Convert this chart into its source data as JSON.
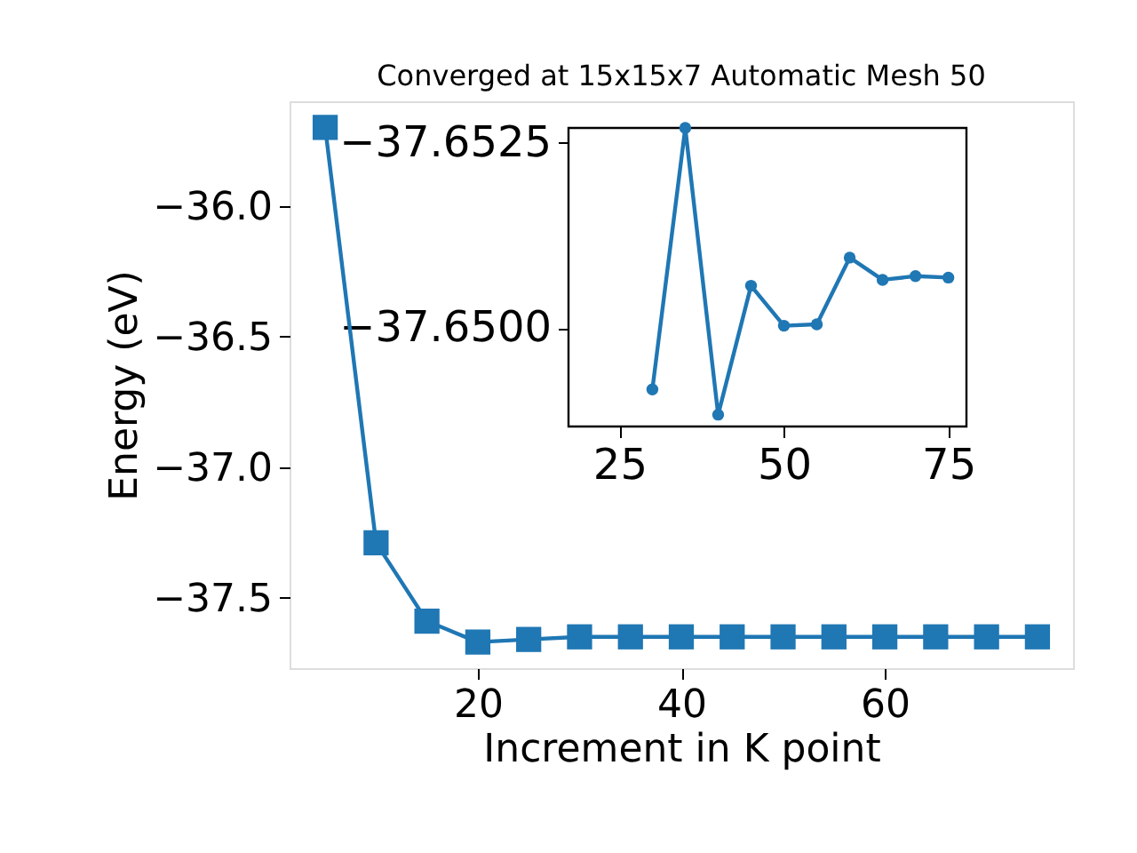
{
  "chart_data": [
    {
      "type": "line",
      "title": "Converged at 15x15x7 Automatic Mesh 50",
      "xlabel": "Increment in K point",
      "ylabel": "Energy (eV)",
      "x": [
        5,
        10,
        15,
        20,
        25,
        30,
        35,
        40,
        45,
        50,
        55,
        60,
        65,
        70,
        75
      ],
      "series": [
        {
          "color": "#1f77b4",
          "values": [
            -35.7,
            -37.29,
            -37.59,
            -37.67,
            -37.66,
            -37.65,
            -37.65,
            -37.65,
            -37.65,
            -37.65,
            -37.65,
            -37.65,
            -37.65,
            -37.65,
            -37.65
          ]
        }
      ],
      "xlim": [
        1.5,
        78.5
      ],
      "xticks": [
        20,
        40,
        60
      ],
      "ylim": [
        -37.77,
        -35.6
      ],
      "yticks": [
        {
          "value": -37.5,
          "label": "−37.5"
        },
        {
          "value": -37.0,
          "label": "−37.0"
        },
        {
          "value": -36.5,
          "label": "−36.5"
        },
        {
          "value": -36.0,
          "label": "−36.0"
        }
      ],
      "marker": "square",
      "grid": false
    },
    {
      "type": "line",
      "x": [
        30,
        35,
        40,
        45,
        50,
        55,
        60,
        65,
        70,
        75
      ],
      "series": [
        {
          "color": "#1f77b4",
          "values": [
            -37.64917,
            -37.6527,
            -37.64883,
            -37.65057,
            -37.65003,
            -37.65005,
            -37.65095,
            -37.65065,
            -37.6507,
            -37.65068
          ]
        }
      ],
      "xlim": [
        17.25,
        77.75
      ],
      "xticks": [
        25,
        50,
        75
      ],
      "ylim": [
        -37.64867,
        -37.6527
      ],
      "yticks": [
        {
          "value": -37.6525,
          "label": "−37.6525"
        },
        {
          "value": -37.65,
          "label": "−37.6500"
        }
      ],
      "marker": "circle",
      "grid": false
    }
  ]
}
